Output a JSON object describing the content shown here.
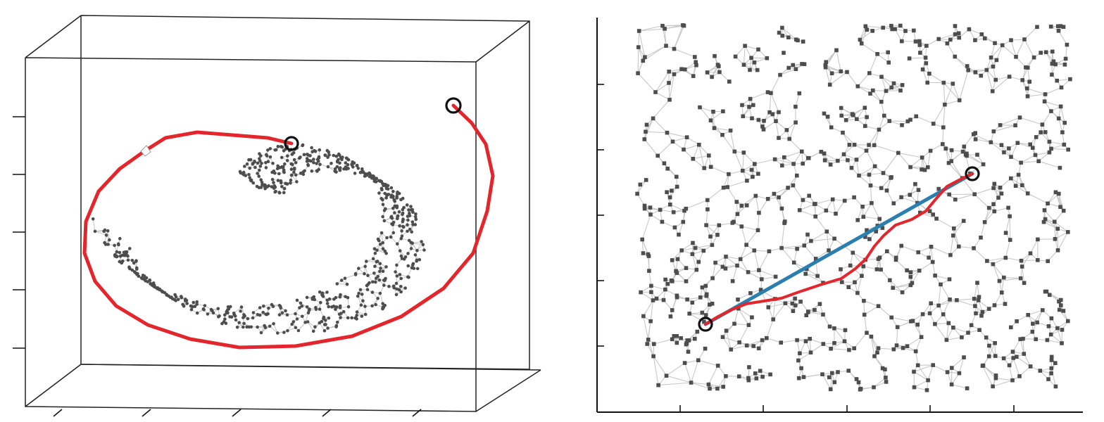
{
  "colors": {
    "edge": "#c8c8c8",
    "node": "#4d4d4d",
    "geodesic_path": "#e3262b",
    "euclidean_line": "#2a7fae",
    "frame": "#222222",
    "endpoint_marker": "#111111"
  },
  "panels": [
    {
      "id": "left",
      "description_kind": "3d swiss-roll neighborhood graph with red shortest path between two circled points",
      "elements": [
        "bounding-box",
        "graph-edges",
        "graph-nodes",
        "red-geodesic",
        "endpoint-circles"
      ]
    },
    {
      "id": "right",
      "description_kind": "2d unrolled neighborhood graph with straight blue line and red graph path between two circled points",
      "elements": [
        "axes",
        "graph-edges",
        "graph-nodes",
        "blue-line",
        "red-path",
        "endpoint-circles"
      ]
    }
  ]
}
